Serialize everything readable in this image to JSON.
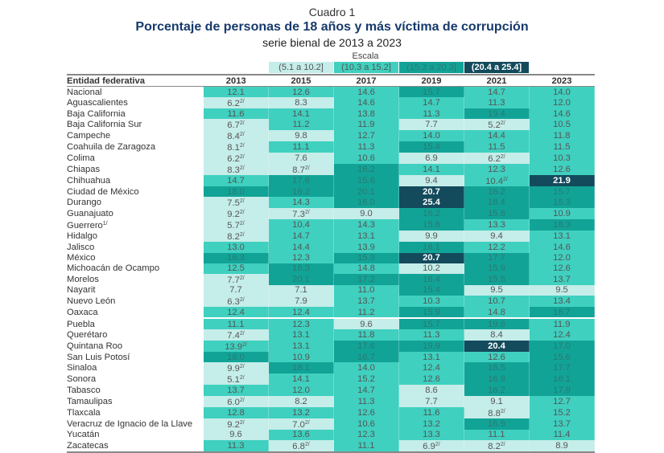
{
  "header": {
    "label": "Cuadro 1",
    "title": "Porcentaje de personas de 18 años y más víctima de corrupción",
    "subtitle": "serie bienal de 2013 a 2023"
  },
  "scale": {
    "title": "Escala",
    "ranges": [
      {
        "label": "(5.1 a 10.2]",
        "color": "#c5ede9",
        "text": "#555"
      },
      {
        "label": "(10.3 a 15.2]",
        "color": "#3fd0bf",
        "text": "#555"
      },
      {
        "label": "(15.3 a 20.3]",
        "color": "#12a397",
        "text": "#2a7a72"
      },
      {
        "label": "(20.4 a 25.4]",
        "color": "#134b5c",
        "text": "#ffffff"
      }
    ]
  },
  "table": {
    "columns": [
      "Entidad federativa",
      "2013",
      "2015",
      "2017",
      "2019",
      "2021",
      "2023"
    ],
    "rows": [
      {
        "name": "Nacional",
        "values": [
          "12.1",
          "12.6",
          "14.6",
          "15.7",
          "14.7",
          "14.0"
        ],
        "notes": [
          "",
          "",
          "",
          "",
          "",
          ""
        ]
      },
      {
        "name": "Aguascalientes",
        "values": [
          "6.2",
          "8.3",
          "14.6",
          "14.7",
          "11.3",
          "12.0"
        ],
        "notes": [
          "2/",
          "",
          "",
          "",
          "",
          ""
        ]
      },
      {
        "name": "Baja California",
        "values": [
          "11.6",
          "14.1",
          "13.8",
          "11.3",
          "19.4",
          "14.6"
        ],
        "notes": [
          "",
          "",
          "",
          "",
          "",
          ""
        ]
      },
      {
        "name": "Baja California Sur",
        "values": [
          "6.7",
          "11.2",
          "11.9",
          "7.7",
          "5.2",
          "10.5"
        ],
        "notes": [
          "2/",
          "",
          "",
          "",
          "2/",
          ""
        ]
      },
      {
        "name": "Campeche",
        "values": [
          "8.4",
          "9.8",
          "12.7",
          "14.0",
          "14.4",
          "11.8"
        ],
        "notes": [
          "2/",
          "",
          "",
          "",
          "",
          ""
        ]
      },
      {
        "name": "Coahuila de Zaragoza",
        "values": [
          "8.1",
          "11.1",
          "11.3",
          "15.4",
          "11.5",
          "11.5"
        ],
        "notes": [
          "2/",
          "",
          "",
          "",
          "",
          ""
        ]
      },
      {
        "name": "Colima",
        "values": [
          "6.2",
          "7.6",
          "10.6",
          "6.9",
          "6.2",
          "10.3"
        ],
        "notes": [
          "2/",
          "",
          "",
          "",
          "2/",
          ""
        ]
      },
      {
        "name": "Chiapas",
        "values": [
          "8.3",
          "8.7",
          "16.2",
          "14.1",
          "12.3",
          "12.6"
        ],
        "notes": [
          "2/",
          "2/",
          "",
          "",
          "",
          ""
        ]
      },
      {
        "name": "Chihuahua",
        "values": [
          "14.7",
          "17.6",
          "15.6",
          "9.4",
          "10.4",
          "21.9"
        ],
        "notes": [
          "",
          "",
          "",
          "",
          "2/",
          ""
        ]
      },
      {
        "name": "Ciudad de México",
        "values": [
          "18.0",
          "16.2",
          "20.1",
          "20.7",
          "16.2",
          "15.7"
        ],
        "notes": [
          "",
          "",
          "",
          "",
          "",
          ""
        ]
      },
      {
        "name": "Durango",
        "values": [
          "7.5",
          "14.3",
          "16.0",
          "25.4",
          "18.4",
          "15.3"
        ],
        "notes": [
          "2/",
          "",
          "",
          "",
          "",
          ""
        ]
      },
      {
        "name": "Guanajuato",
        "values": [
          "9.2",
          "7.3",
          "9.0",
          "16.2",
          "15.8",
          "10.9"
        ],
        "notes": [
          "2/",
          "2/",
          "",
          "",
          "",
          ""
        ]
      },
      {
        "name": "Guerrero",
        "name_note": "1/",
        "values": [
          "5.7",
          "10.4",
          "14.3",
          "15.8",
          "13.3",
          "18.3"
        ],
        "notes": [
          "2/",
          "",
          "",
          "",
          "",
          ""
        ]
      },
      {
        "name": "Hidalgo",
        "values": [
          "8.2",
          "14.7",
          "13.1",
          "9.9",
          "9.4",
          "13.1"
        ],
        "notes": [
          "2/",
          "",
          "",
          "",
          "",
          ""
        ]
      },
      {
        "name": "Jalisco",
        "values": [
          "13.0",
          "14.4",
          "13.9",
          "16.1",
          "12.2",
          "14.6"
        ],
        "notes": [
          "",
          "",
          "",
          "",
          "",
          ""
        ]
      },
      {
        "name": "México",
        "values": [
          "16.3",
          "12.3",
          "15.9",
          "20.7",
          "17.7",
          "12.0"
        ],
        "notes": [
          "",
          "",
          "",
          "",
          "",
          ""
        ]
      },
      {
        "name": "Michoacán de Ocampo",
        "values": [
          "12.5",
          "16.3",
          "14.8",
          "10.2",
          "15.9",
          "12.6"
        ],
        "notes": [
          "",
          "",
          "",
          "",
          "",
          ""
        ]
      },
      {
        "name": "Morelos",
        "values": [
          "7.7",
          "20.1",
          "17.2",
          "16.4",
          "15.5",
          "13.7"
        ],
        "notes": [
          "2/",
          "",
          "",
          "",
          "",
          ""
        ]
      },
      {
        "name": "Nayarit",
        "values": [
          "7.7",
          "7.1",
          "11.0",
          "15.4",
          "9.5",
          "9.5"
        ],
        "notes": [
          "",
          "",
          "",
          "",
          "",
          ""
        ]
      },
      {
        "name": "Nuevo León",
        "values": [
          "6.3",
          "7.9",
          "13.7",
          "10.3",
          "10.7",
          "13.4"
        ],
        "notes": [
          "2/",
          "",
          "",
          "",
          "",
          ""
        ]
      },
      {
        "name": "Oaxaca",
        "values": [
          "12.4",
          "12.4",
          "11.2",
          "15.9",
          "14.8",
          "16.7"
        ],
        "notes": [
          "",
          "",
          "",
          "",
          "",
          ""
        ]
      },
      {
        "name": "Puebla",
        "values": [
          "11.1",
          "12.3",
          "9.6",
          "15.7",
          "19.6",
          "11.9"
        ],
        "notes": [
          "",
          "",
          "",
          "",
          "",
          ""
        ]
      },
      {
        "name": "Querétaro",
        "values": [
          "7.4",
          "13.1",
          "11.8",
          "11.3",
          "8.4",
          "12.4"
        ],
        "notes": [
          "2/",
          "",
          "",
          "",
          "",
          ""
        ]
      },
      {
        "name": "Quintana Roo",
        "values": [
          "13.9",
          "13.1",
          "17.6",
          "19.9",
          "20.4",
          "17.0"
        ],
        "notes": [
          "2/",
          "",
          "",
          "",
          "",
          ""
        ]
      },
      {
        "name": "San Luis Potosí",
        "values": [
          "18.0",
          "10.9",
          "16.7",
          "13.1",
          "12.6",
          "15.6"
        ],
        "notes": [
          "",
          "",
          "",
          "",
          "",
          ""
        ]
      },
      {
        "name": "Sinaloa",
        "values": [
          "9.9",
          "18.1",
          "14.0",
          "12.4",
          "16.5",
          "17.7"
        ],
        "notes": [
          "2/",
          "",
          "",
          "",
          "",
          ""
        ]
      },
      {
        "name": "Sonora",
        "values": [
          "5.1",
          "14.1",
          "15.2",
          "12.6",
          "16.9",
          "16.1"
        ],
        "notes": [
          "2/",
          "",
          "",
          "",
          "",
          ""
        ]
      },
      {
        "name": "Tabasco",
        "values": [
          "13.7",
          "12.0",
          "14.7",
          "8.6",
          "16.2",
          "17.9"
        ],
        "notes": [
          "",
          "",
          "",
          "",
          "",
          ""
        ]
      },
      {
        "name": "Tamaulipas",
        "values": [
          "6.0",
          "8.2",
          "11.3",
          "7.7",
          "9.1",
          "12.7"
        ],
        "notes": [
          "2/",
          "",
          "",
          "",
          "",
          ""
        ]
      },
      {
        "name": "Tlaxcala",
        "values": [
          "12.8",
          "13.2",
          "12.6",
          "11.6",
          "8.8",
          "15.2"
        ],
        "notes": [
          "",
          "",
          "",
          "",
          "2/",
          ""
        ]
      },
      {
        "name": "Veracruz de Ignacio de la Llave",
        "values": [
          "9.2",
          "7.0",
          "10.6",
          "13.2",
          "16.9",
          "13.7"
        ],
        "notes": [
          "2/",
          "2/",
          "",
          "",
          "",
          ""
        ]
      },
      {
        "name": "Yucatán",
        "values": [
          "9.6",
          "13.6",
          "12.3",
          "13.3",
          "11.1",
          "11.4"
        ],
        "notes": [
          "",
          "",
          "",
          "",
          "",
          ""
        ]
      },
      {
        "name": "Zacatecas",
        "values": [
          "11.3",
          "6.8",
          "11.1",
          "6.9",
          "8.2",
          "8.9"
        ],
        "notes": [
          "",
          "2/",
          "",
          "2/",
          "2/",
          ""
        ]
      }
    ]
  }
}
